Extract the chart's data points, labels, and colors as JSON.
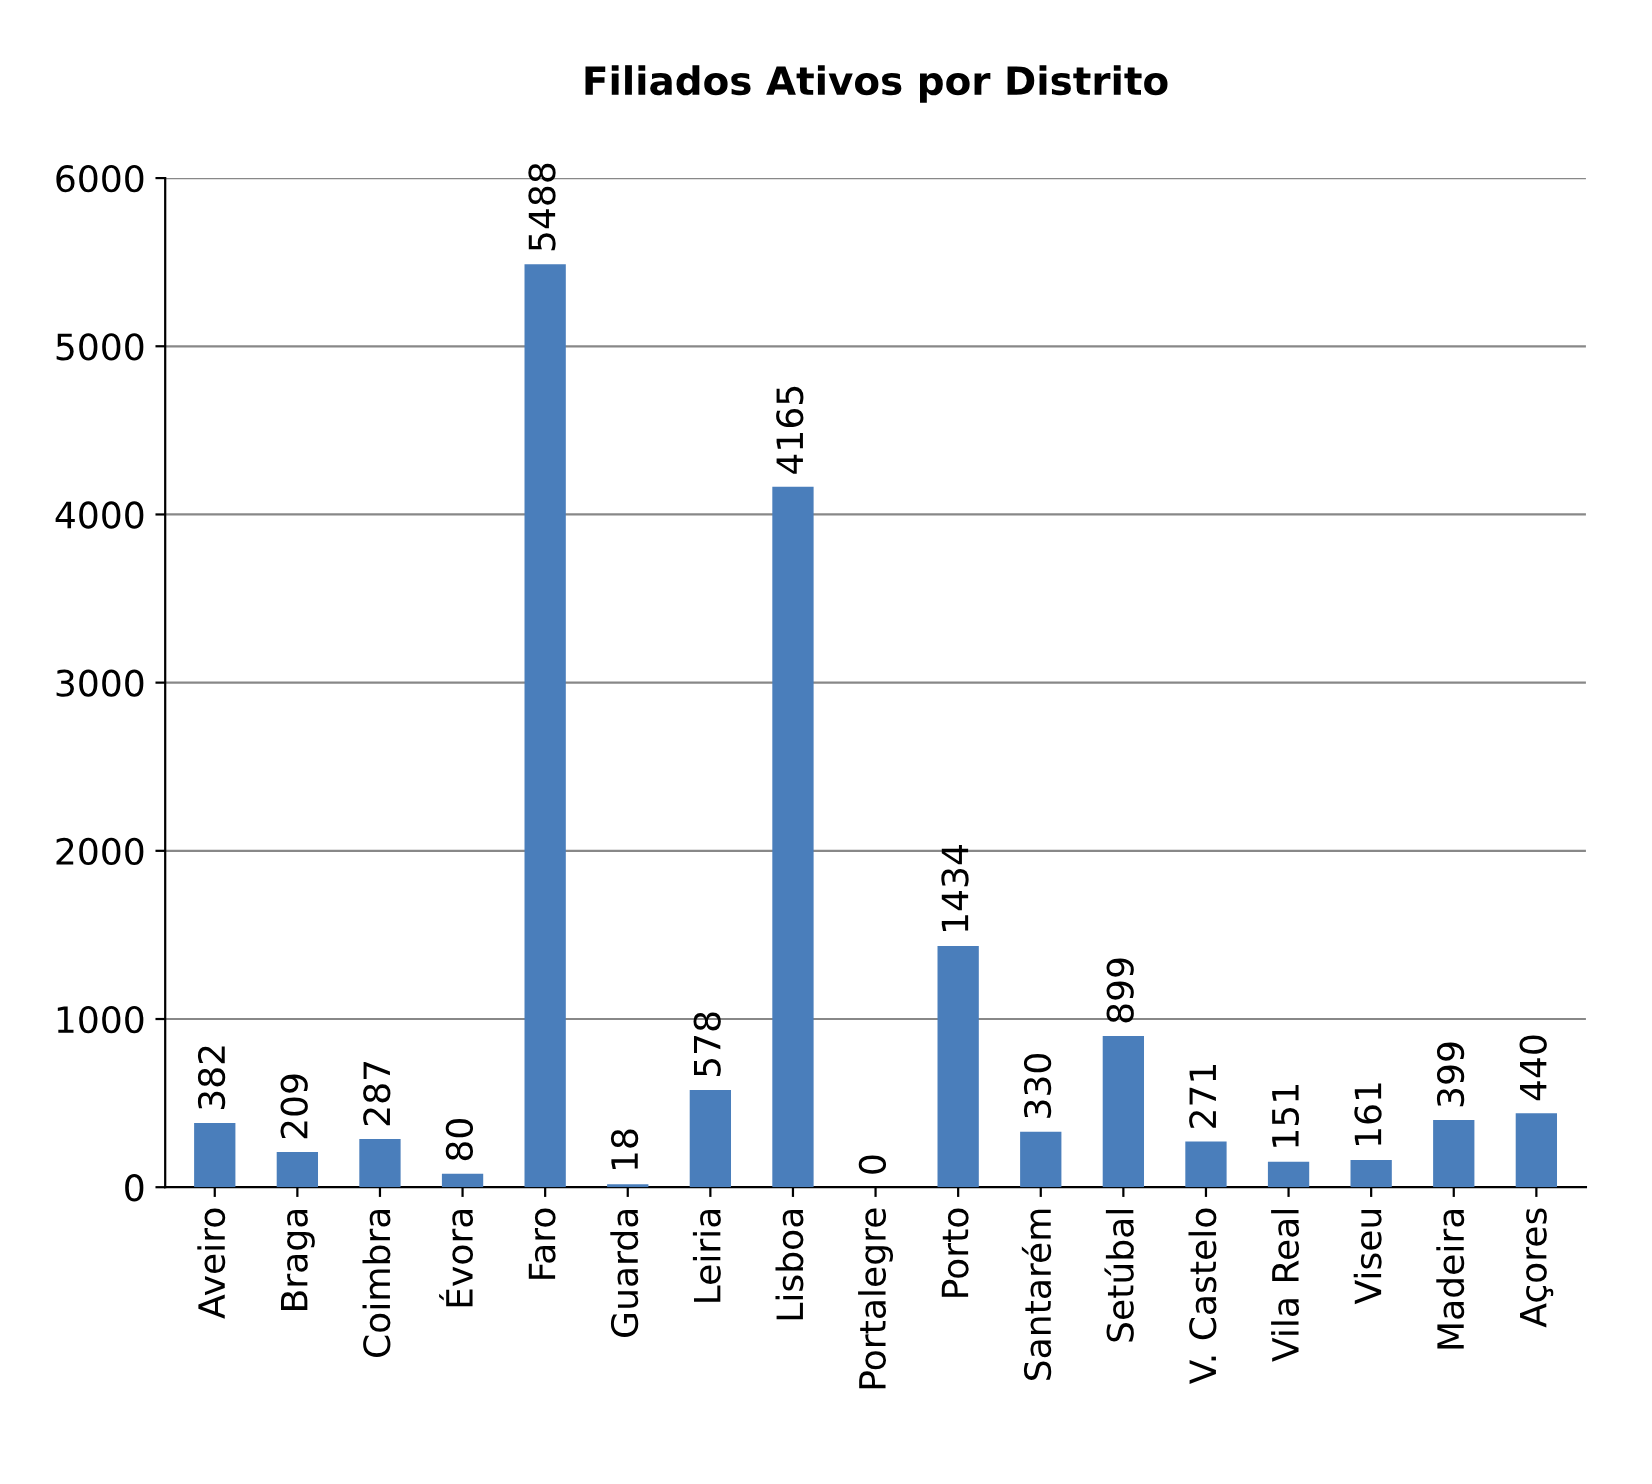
{
  "chart_data": {
    "type": "bar",
    "title": "Filiados Ativos por Distrito",
    "categories": [
      "Aveiro",
      "Braga",
      "Coimbra",
      "Évora",
      "Faro",
      "Guarda",
      "Leiria",
      "Lisboa",
      "Portalegre",
      "Porto",
      "Santarém",
      "Setúbal",
      "V. Castelo",
      "Vila Real",
      "Viseu",
      "Madeira",
      "Açores"
    ],
    "values": [
      382,
      209,
      287,
      80,
      5488,
      18,
      578,
      4165,
      0,
      1434,
      330,
      899,
      271,
      151,
      161,
      399,
      440
    ],
    "color": "#4a7ebb",
    "ylim": [
      0,
      6000
    ],
    "yticks": [
      0,
      1000,
      2000,
      3000,
      4000,
      5000,
      6000
    ],
    "grid": "y",
    "data_labels": true
  }
}
